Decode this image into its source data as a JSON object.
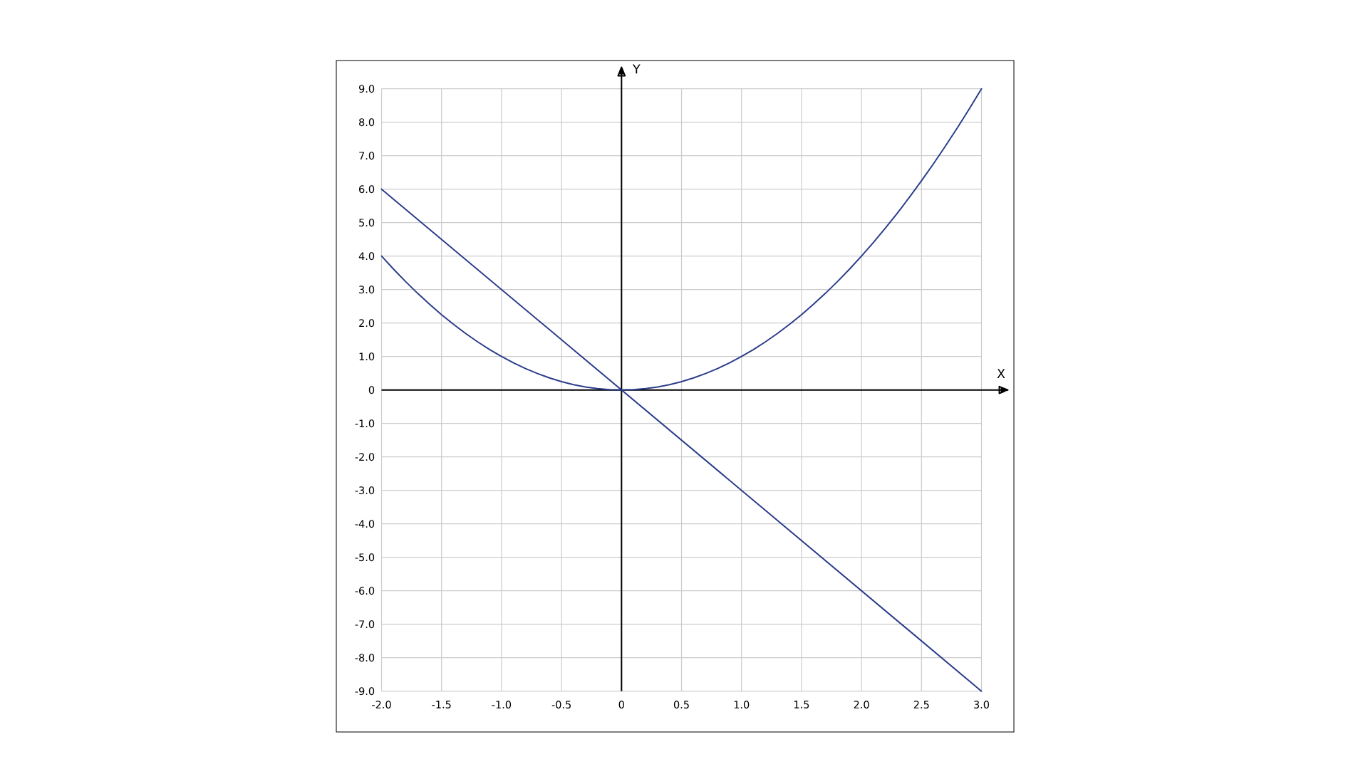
{
  "chart_data": {
    "type": "line",
    "xlabel": "X",
    "ylabel": "Y",
    "x": [
      -2.0,
      -1.9,
      -1.8,
      -1.7,
      -1.6,
      -1.5,
      -1.4,
      -1.3,
      -1.2,
      -1.1,
      -1.0,
      -0.9,
      -0.8,
      -0.7,
      -0.6,
      -0.5,
      -0.4,
      -0.3,
      -0.2,
      -0.1,
      0.0,
      0.1,
      0.2,
      0.3,
      0.4,
      0.5,
      0.6,
      0.7,
      0.8,
      0.9,
      1.0,
      1.1,
      1.2,
      1.3,
      1.4,
      1.5,
      1.6,
      1.7,
      1.8,
      1.9,
      2.0,
      2.1,
      2.2,
      2.3,
      2.4,
      2.5,
      2.6,
      2.7,
      2.8,
      2.9,
      3.0
    ],
    "series": [
      {
        "color": "#2b3d8b",
        "values": [
          4.0,
          3.61,
          3.24,
          2.89,
          2.56,
          2.25,
          1.96,
          1.69,
          1.44,
          1.21,
          1.0,
          0.81,
          0.64,
          0.49,
          0.36,
          0.25,
          0.16,
          0.09,
          0.04,
          0.01,
          0.0,
          0.01,
          0.04,
          0.09,
          0.16,
          0.25,
          0.36,
          0.49,
          0.64,
          0.81,
          1.0,
          1.21,
          1.44,
          1.69,
          1.96,
          2.25,
          2.56,
          2.89,
          3.24,
          3.61,
          4.0,
          4.41,
          4.84,
          5.29,
          5.76,
          6.25,
          6.76,
          7.29,
          7.84,
          8.41,
          9.0
        ]
      },
      {
        "color": "#2b3d8b",
        "x": [
          -2.0,
          3.0
        ],
        "values": [
          6.0,
          -9.0
        ]
      }
    ],
    "xlim": [
      -2.0,
      3.0
    ],
    "ylim": [
      -9.0,
      9.0
    ],
    "xticks": [
      {
        "value": -2.0,
        "label": "-2.0"
      },
      {
        "value": -1.5,
        "label": "-1.5"
      },
      {
        "value": -1.0,
        "label": "-1.0"
      },
      {
        "value": -0.5,
        "label": "-0.5"
      },
      0,
      {
        "value": 0.5,
        "label": "0.5"
      },
      {
        "value": 1.0,
        "label": "1.0"
      },
      {
        "value": 1.5,
        "label": "1.5"
      },
      {
        "value": 2.0,
        "label": "2.0"
      },
      {
        "value": 2.5,
        "label": "2.5"
      },
      {
        "value": 3.0,
        "label": "3.0"
      }
    ],
    "yticks": [
      {
        "value": -9.0,
        "label": "-9.0"
      },
      {
        "value": -8.0,
        "label": "-8.0"
      },
      {
        "value": -7.0,
        "label": "-7.0"
      },
      {
        "value": -6.0,
        "label": "-6.0"
      },
      {
        "value": -5.0,
        "label": "-5.0"
      },
      {
        "value": -4.0,
        "label": "-4.0"
      },
      {
        "value": -3.0,
        "label": "-3.0"
      },
      {
        "value": -2.0,
        "label": "-2.0"
      },
      {
        "value": -1.0,
        "label": "-1.0"
      },
      0,
      {
        "value": 1.0,
        "label": "1.0"
      },
      {
        "value": 2.0,
        "label": "2.0"
      },
      {
        "value": 3.0,
        "label": "3.0"
      },
      {
        "value": 4.0,
        "label": "4.0"
      },
      {
        "value": 5.0,
        "label": "5.0"
      },
      {
        "value": 6.0,
        "label": "6.0"
      },
      {
        "value": 7.0,
        "label": "7.0"
      },
      {
        "value": 8.0,
        "label": "8.0"
      },
      {
        "value": 9.0,
        "label": "9.0"
      }
    ],
    "grid": true,
    "line_style": "solid"
  }
}
